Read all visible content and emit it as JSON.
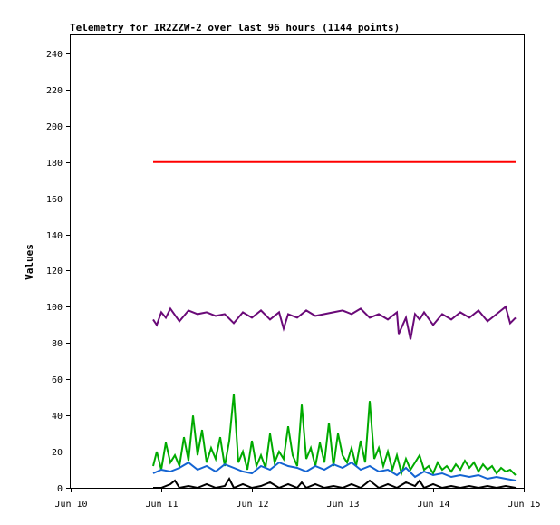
{
  "chart_data": {
    "type": "line",
    "title": "Telemetry for IR2ZZW-2 over last 96 hours (1144 points)",
    "ylabel": "Values",
    "xlabel": "",
    "ylim": [
      0,
      250
    ],
    "xlim": [
      0,
      5
    ],
    "grid": false,
    "legend": "none",
    "y_ticks": [
      0,
      20,
      40,
      60,
      80,
      100,
      120,
      140,
      160,
      180,
      200,
      220,
      240
    ],
    "x_ticks": [
      {
        "x": 0,
        "label": "Jun 10"
      },
      {
        "x": 1,
        "label": "Jun 11"
      },
      {
        "x": 2,
        "label": "Jun 12"
      },
      {
        "x": 3,
        "label": "Jun 13"
      },
      {
        "x": 4,
        "label": "Jun 14"
      },
      {
        "x": 5,
        "label": "Jun 15"
      }
    ],
    "series": [
      {
        "color": "#ff0000",
        "x": [
          0.91,
          1.2,
          1.5,
          1.7,
          2.0,
          2.3,
          2.6,
          3.0,
          3.4,
          3.8,
          4.2,
          4.6,
          4.91
        ],
        "values": [
          180,
          180,
          180,
          180,
          180,
          180,
          180,
          180,
          180,
          180,
          180,
          180,
          180
        ]
      },
      {
        "color": "#6a0a78",
        "x": [
          0.91,
          0.95,
          1.0,
          1.05,
          1.1,
          1.2,
          1.3,
          1.4,
          1.5,
          1.6,
          1.7,
          1.8,
          1.9,
          2.0,
          2.1,
          2.2,
          2.3,
          2.35,
          2.4,
          2.5,
          2.6,
          2.7,
          2.8,
          2.9,
          3.0,
          3.1,
          3.2,
          3.3,
          3.4,
          3.5,
          3.6,
          3.62,
          3.7,
          3.75,
          3.8,
          3.85,
          3.9,
          4.0,
          4.1,
          4.2,
          4.3,
          4.4,
          4.5,
          4.6,
          4.7,
          4.8,
          4.85,
          4.91
        ],
        "values": [
          93,
          90,
          97,
          94,
          99,
          92,
          98,
          96,
          97,
          95,
          96,
          91,
          97,
          94,
          98,
          93,
          97,
          88,
          96,
          94,
          98,
          95,
          96,
          97,
          98,
          96,
          99,
          94,
          96,
          93,
          97,
          85,
          94,
          82,
          96,
          93,
          97,
          90,
          96,
          93,
          97,
          94,
          98,
          92,
          96,
          100,
          91,
          94
        ]
      },
      {
        "color": "#00aa00",
        "x": [
          0.91,
          0.95,
          1.0,
          1.05,
          1.1,
          1.15,
          1.2,
          1.25,
          1.3,
          1.35,
          1.4,
          1.45,
          1.5,
          1.55,
          1.6,
          1.65,
          1.7,
          1.75,
          1.8,
          1.85,
          1.9,
          1.95,
          2.0,
          2.05,
          2.1,
          2.15,
          2.2,
          2.25,
          2.3,
          2.35,
          2.4,
          2.45,
          2.5,
          2.55,
          2.6,
          2.65,
          2.7,
          2.75,
          2.8,
          2.85,
          2.9,
          2.95,
          3.0,
          3.05,
          3.1,
          3.15,
          3.2,
          3.25,
          3.3,
          3.35,
          3.4,
          3.45,
          3.5,
          3.55,
          3.6,
          3.65,
          3.7,
          3.75,
          3.8,
          3.85,
          3.9,
          3.95,
          4.0,
          4.05,
          4.1,
          4.15,
          4.2,
          4.25,
          4.3,
          4.35,
          4.4,
          4.45,
          4.5,
          4.55,
          4.6,
          4.65,
          4.7,
          4.75,
          4.8,
          4.85,
          4.91
        ],
        "values": [
          12,
          20,
          10,
          25,
          14,
          18,
          12,
          28,
          15,
          40,
          18,
          32,
          14,
          22,
          16,
          28,
          12,
          26,
          52,
          14,
          20,
          10,
          26,
          12,
          18,
          11,
          30,
          14,
          20,
          16,
          34,
          18,
          12,
          46,
          16,
          22,
          12,
          25,
          14,
          36,
          12,
          30,
          18,
          14,
          22,
          12,
          26,
          14,
          48,
          16,
          22,
          12,
          20,
          10,
          18,
          8,
          16,
          10,
          14,
          18,
          10,
          12,
          8,
          14,
          10,
          12,
          9,
          13,
          10,
          15,
          11,
          14,
          9,
          13,
          10,
          12,
          8,
          11,
          9,
          10,
          7
        ]
      },
      {
        "color": "#1464d2",
        "x": [
          0.91,
          1.0,
          1.1,
          1.2,
          1.3,
          1.4,
          1.5,
          1.6,
          1.7,
          1.8,
          1.9,
          2.0,
          2.1,
          2.2,
          2.3,
          2.4,
          2.5,
          2.6,
          2.7,
          2.8,
          2.9,
          3.0,
          3.1,
          3.2,
          3.3,
          3.4,
          3.5,
          3.6,
          3.7,
          3.8,
          3.9,
          4.0,
          4.1,
          4.2,
          4.3,
          4.4,
          4.5,
          4.6,
          4.7,
          4.8,
          4.91
        ],
        "values": [
          8,
          10,
          9,
          11,
          14,
          10,
          12,
          9,
          13,
          11,
          9,
          8,
          12,
          10,
          14,
          12,
          11,
          9,
          12,
          10,
          13,
          11,
          14,
          10,
          12,
          9,
          10,
          7,
          11,
          6,
          9,
          7,
          8,
          6,
          7,
          6,
          7,
          5,
          6,
          5,
          4
        ]
      },
      {
        "color": "#000000",
        "x": [
          0.91,
          1.0,
          1.1,
          1.15,
          1.2,
          1.3,
          1.4,
          1.5,
          1.6,
          1.7,
          1.75,
          1.8,
          1.9,
          2.0,
          2.1,
          2.2,
          2.3,
          2.4,
          2.5,
          2.55,
          2.6,
          2.7,
          2.8,
          2.9,
          3.0,
          3.1,
          3.2,
          3.3,
          3.4,
          3.5,
          3.6,
          3.7,
          3.8,
          3.85,
          3.9,
          4.0,
          4.1,
          4.2,
          4.3,
          4.4,
          4.5,
          4.6,
          4.7,
          4.8,
          4.91
        ],
        "values": [
          0,
          0,
          2,
          4,
          0,
          1,
          0,
          2,
          0,
          1,
          5,
          0,
          2,
          0,
          1,
          3,
          0,
          2,
          0,
          3,
          0,
          2,
          0,
          1,
          0,
          2,
          0,
          4,
          0,
          2,
          0,
          3,
          1,
          4,
          0,
          2,
          0,
          1,
          0,
          1,
          0,
          1,
          0,
          1,
          0
        ]
      }
    ]
  }
}
